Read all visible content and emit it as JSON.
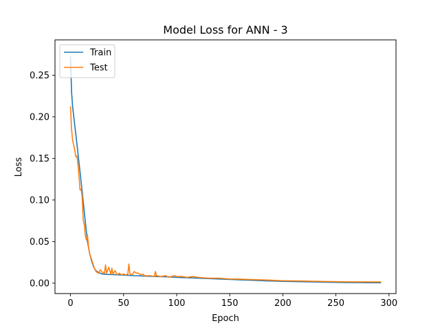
{
  "chart_data": {
    "type": "line",
    "title": "Model Loss for ANN - 3",
    "xlabel": "Epoch",
    "ylabel": "Loss",
    "xlim": [
      -14.6,
      306.6
    ],
    "ylim": [
      -0.0125,
      0.2925
    ],
    "xticks": [
      0,
      50,
      100,
      150,
      200,
      250,
      300
    ],
    "yticks": [
      0.0,
      0.05,
      0.1,
      0.15,
      0.2,
      0.25
    ],
    "grid": false,
    "legend_position": "top-left",
    "series": [
      {
        "name": "Train",
        "color": "#1f77b4",
        "x": [
          0,
          1,
          2,
          4,
          6,
          8,
          10,
          12,
          14,
          16,
          18,
          20,
          22,
          24,
          26,
          28,
          30,
          35,
          40,
          50,
          60,
          70,
          80,
          90,
          100,
          120,
          140,
          160,
          180,
          200,
          220,
          240,
          260,
          280,
          292
        ],
        "y": [
          0.272,
          0.23,
          0.212,
          0.19,
          0.168,
          0.145,
          0.122,
          0.098,
          0.073,
          0.05,
          0.036,
          0.026,
          0.019,
          0.015,
          0.013,
          0.012,
          0.011,
          0.0105,
          0.0103,
          0.0098,
          0.009,
          0.0085,
          0.008,
          0.0077,
          0.007,
          0.006,
          0.005,
          0.004,
          0.003,
          0.0022,
          0.0017,
          0.0012,
          0.0008,
          0.0006,
          0.0005
        ]
      },
      {
        "name": "Test",
        "color": "#ff7f0e",
        "x": [
          0,
          1,
          2,
          3,
          4,
          5,
          6,
          7,
          8,
          9,
          10,
          11,
          12,
          13,
          14,
          15,
          16,
          17,
          18,
          20,
          22,
          24,
          26,
          28,
          30,
          32,
          33,
          34,
          36,
          38,
          39,
          40,
          42,
          44,
          46,
          48,
          50,
          52,
          54,
          55,
          56,
          58,
          60,
          62,
          64,
          66,
          68,
          70,
          75,
          79,
          80,
          81,
          85,
          90,
          92,
          95,
          98,
          100,
          105,
          110,
          115,
          120,
          130,
          140,
          150,
          160,
          170,
          180,
          190,
          200,
          210,
          220,
          230,
          240,
          250,
          260,
          270,
          280,
          292
        ],
        "y": [
          0.212,
          0.185,
          0.172,
          0.166,
          0.16,
          0.152,
          0.153,
          0.143,
          0.128,
          0.112,
          0.113,
          0.104,
          0.076,
          0.07,
          0.057,
          0.052,
          0.058,
          0.044,
          0.036,
          0.028,
          0.02,
          0.014,
          0.012,
          0.016,
          0.013,
          0.012,
          0.022,
          0.012,
          0.019,
          0.011,
          0.018,
          0.011,
          0.015,
          0.01,
          0.012,
          0.01,
          0.011,
          0.01,
          0.011,
          0.023,
          0.011,
          0.01,
          0.014,
          0.012,
          0.012,
          0.01,
          0.011,
          0.009,
          0.009,
          0.008,
          0.014,
          0.009,
          0.008,
          0.009,
          0.007,
          0.008,
          0.009,
          0.008,
          0.008,
          0.007,
          0.008,
          0.007,
          0.006,
          0.006,
          0.005,
          0.0048,
          0.0043,
          0.004,
          0.0035,
          0.003,
          0.0028,
          0.0025,
          0.0022,
          0.002,
          0.0018,
          0.0016,
          0.0015,
          0.0015,
          0.0015
        ]
      }
    ]
  }
}
